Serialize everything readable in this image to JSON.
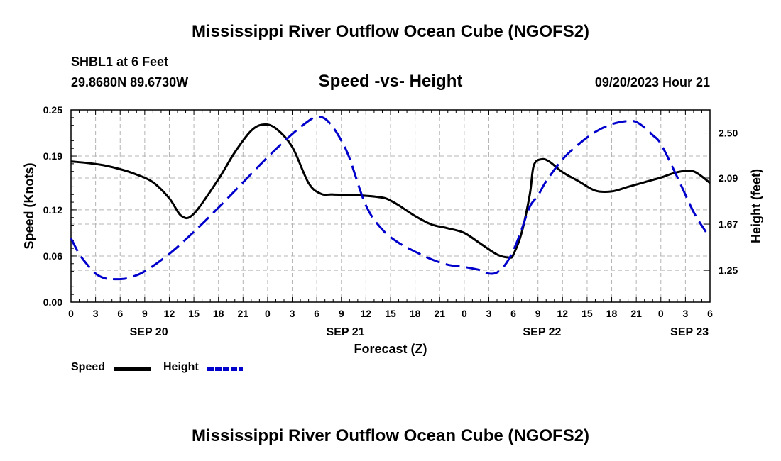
{
  "header": {
    "title": "Mississippi River Outflow Ocean Cube (NGOFS2)",
    "station": "SHBL1 at 6 Feet",
    "coordinates": "29.8680N  89.6730W",
    "subtitle": "Speed -vs- Height",
    "datetime": "09/20/2023 Hour 21"
  },
  "footer": {
    "title": "Mississippi River Outflow Ocean Cube (NGOFS2)"
  },
  "legend": {
    "speed_label": "Speed",
    "height_label": "Height"
  },
  "colors": {
    "speed": "#000000",
    "height": "#0000cc",
    "grid": "#b4b4b4"
  },
  "chart_data": {
    "type": "line",
    "xlabel": "Forecast (Z)",
    "ylabel_left": "Speed (Knots)",
    "ylabel_right": "Height (feet)",
    "x_unit": "hours from 2023-09-20 00Z",
    "xlim": [
      0,
      78
    ],
    "ylim_left": [
      0.0,
      0.25
    ],
    "ylim_right": [
      0.96,
      2.71
    ],
    "x_tick_labels": [
      "0",
      "3",
      "6",
      "9",
      "12",
      "15",
      "18",
      "21",
      "0",
      "3",
      "6",
      "9",
      "12",
      "15",
      "18",
      "21",
      "0",
      "3",
      "6",
      "9",
      "12",
      "15",
      "18",
      "21",
      "0",
      "3",
      "6"
    ],
    "y_left_ticks": [
      0.0,
      0.06,
      0.12,
      0.19,
      0.25
    ],
    "y_left_tick_labels": [
      "0.00",
      "0.06",
      "0.12",
      "0.19",
      "0.25"
    ],
    "y_right_ticks": [
      1.25,
      1.67,
      2.09,
      2.5
    ],
    "y_right_tick_labels": [
      "1.25",
      "1.67",
      "2.09",
      "2.50"
    ],
    "day_labels": [
      {
        "label": "SEP 20",
        "hour": 9.5
      },
      {
        "label": "SEP 21",
        "hour": 33.5
      },
      {
        "label": "SEP 22",
        "hour": 57.5
      },
      {
        "label": "SEP 23",
        "hour": 75.5
      }
    ],
    "grid": true,
    "series": [
      {
        "name": "Speed",
        "axis": "left",
        "style": "solid",
        "x": [
          0,
          2,
          4,
          6,
          8,
          10,
          12,
          13.5,
          15,
          18,
          20,
          22,
          23.5,
          25,
          27,
          29,
          30.5,
          32,
          35,
          38,
          39,
          40,
          42,
          44,
          46,
          48,
          50,
          52,
          53.5,
          54,
          55,
          56,
          56.5,
          57.5,
          58.5,
          60,
          62,
          64,
          66,
          68,
          70,
          72,
          74,
          76,
          78
        ],
        "values": [
          0.183,
          0.181,
          0.178,
          0.173,
          0.166,
          0.156,
          0.135,
          0.112,
          0.115,
          0.16,
          0.195,
          0.223,
          0.231,
          0.226,
          0.202,
          0.155,
          0.141,
          0.14,
          0.139,
          0.136,
          0.132,
          0.126,
          0.112,
          0.101,
          0.096,
          0.09,
          0.076,
          0.062,
          0.058,
          0.062,
          0.09,
          0.14,
          0.178,
          0.186,
          0.182,
          0.169,
          0.157,
          0.145,
          0.144,
          0.15,
          0.156,
          0.162,
          0.169,
          0.17,
          0.155
        ]
      },
      {
        "name": "Height",
        "axis": "right",
        "style": "dashed",
        "x": [
          0,
          1,
          2,
          3,
          4,
          5,
          6,
          7,
          9,
          12,
          15,
          18,
          21,
          24,
          27,
          29,
          30,
          31,
          32,
          33,
          34,
          36,
          38,
          40,
          42,
          44,
          46,
          48,
          50,
          51,
          52,
          53,
          54,
          55,
          56,
          57,
          58,
          60,
          62,
          64,
          66,
          68,
          69,
          70,
          71,
          72,
          74,
          76,
          77.5
        ],
        "values": [
          1.54,
          1.4,
          1.3,
          1.22,
          1.18,
          1.17,
          1.17,
          1.18,
          1.24,
          1.4,
          1.6,
          1.82,
          2.05,
          2.28,
          2.49,
          2.61,
          2.65,
          2.63,
          2.55,
          2.43,
          2.27,
          1.84,
          1.62,
          1.5,
          1.42,
          1.35,
          1.3,
          1.28,
          1.25,
          1.22,
          1.23,
          1.3,
          1.43,
          1.62,
          1.83,
          1.93,
          2.06,
          2.26,
          2.4,
          2.51,
          2.58,
          2.61,
          2.6,
          2.55,
          2.48,
          2.4,
          2.1,
          1.78,
          1.6
        ]
      }
    ]
  }
}
